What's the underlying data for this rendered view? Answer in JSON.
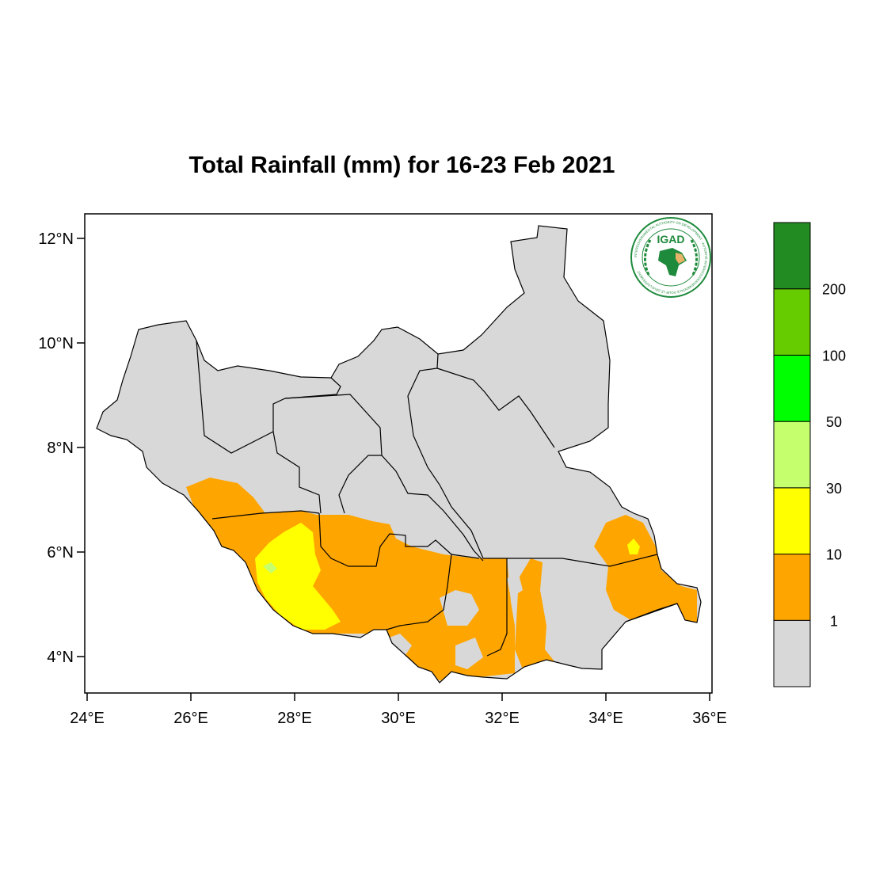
{
  "title": "Total Rainfall (mm) for 16-23 Feb 2021",
  "map": {
    "lon_range": [
      24,
      36
    ],
    "lat_range": [
      3.4,
      12.4
    ],
    "x_ticks": [
      {
        "value": 24,
        "label": "24°E"
      },
      {
        "value": 26,
        "label": "26°E"
      },
      {
        "value": 28,
        "label": "28°E"
      },
      {
        "value": 30,
        "label": "30°E"
      },
      {
        "value": 32,
        "label": "32°E"
      },
      {
        "value": 34,
        "label": "34°E"
      },
      {
        "value": 36,
        "label": "36°E"
      }
    ],
    "y_ticks": [
      {
        "value": 12,
        "label": "12°N"
      },
      {
        "value": 10,
        "label": "10°N"
      },
      {
        "value": 8,
        "label": "8°N"
      },
      {
        "value": 6,
        "label": "6°N"
      },
      {
        "value": 4,
        "label": "4°N"
      }
    ]
  },
  "legend": {
    "bins": [
      {
        "color": "#d8d8d8"
      },
      {
        "color": "#ffa500"
      },
      {
        "color": "#ffff00"
      },
      {
        "color": "#c6ff6e"
      },
      {
        "color": "#00ff00"
      },
      {
        "color": "#66cc00"
      },
      {
        "color": "#228b22"
      }
    ],
    "labels": [
      "1",
      "10",
      "30",
      "50",
      "100",
      "200"
    ]
  },
  "logo": {
    "name": "IGAD",
    "ring_text": "INTERGOVERNMENTAL AUTHORITY ON DEVELOPMENT · AUTORITÉ INTERGOUVERNEMENTALE POUR LE DÉVELOPPEMENT",
    "colors": {
      "green": "#1e8a3c",
      "tan": "#e9b36a"
    }
  },
  "colors": {
    "no_rain": "#d8d8d8",
    "r1_10": "#ffa500",
    "r10_30": "#ffff00",
    "r30_50": "#c6ff6e"
  }
}
